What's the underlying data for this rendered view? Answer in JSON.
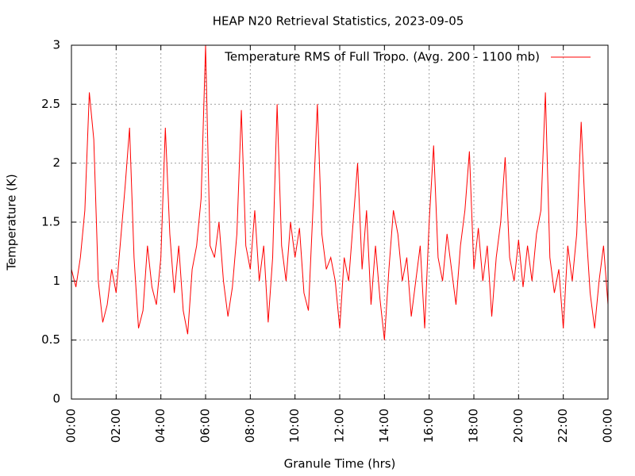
{
  "chart_data": {
    "type": "line",
    "title": "HEAP N20 Retrieval Statistics, 2023-09-05",
    "xlabel": "Granule Time (hrs)",
    "ylabel": "Temperature (K)",
    "x": [
      0,
      0.2,
      0.4,
      0.6,
      0.8,
      1,
      1.2,
      1.4,
      1.6,
      1.8,
      2,
      2.2,
      2.4,
      2.6,
      2.8,
      3,
      3.2,
      3.4,
      3.6,
      3.8,
      4,
      4.2,
      4.4,
      4.6,
      4.8,
      5,
      5.2,
      5.4,
      5.6,
      5.8,
      6,
      6.2,
      6.4,
      6.6,
      6.8,
      7,
      7.2,
      7.4,
      7.6,
      7.8,
      8,
      8.2,
      8.4,
      8.6,
      8.8,
      9,
      9.2,
      9.4,
      9.6,
      9.8,
      10,
      10.2,
      10.4,
      10.6,
      10.8,
      11,
      11.2,
      11.4,
      11.6,
      11.8,
      12,
      12.2,
      12.4,
      12.6,
      12.8,
      13,
      13.2,
      13.4,
      13.6,
      13.8,
      14,
      14.2,
      14.4,
      14.6,
      14.8,
      15,
      15.2,
      15.4,
      15.6,
      15.8,
      16,
      16.2,
      16.4,
      16.6,
      16.8,
      17,
      17.2,
      17.4,
      17.6,
      17.8,
      18,
      18.2,
      18.4,
      18.6,
      18.8,
      19,
      19.2,
      19.4,
      19.6,
      19.8,
      20,
      20.2,
      20.4,
      20.6,
      20.8,
      21,
      21.2,
      21.4,
      21.6,
      21.8,
      22,
      22.2,
      22.4,
      22.6,
      22.8,
      23,
      23.2,
      23.4,
      23.6,
      23.8,
      24
    ],
    "series": [
      {
        "name": "Temperature RMS of Full Tropo. (Avg. 200 - 1100 mb)",
        "color": "#ff0000",
        "values": [
          1.1,
          0.95,
          1.2,
          1.6,
          2.6,
          2.2,
          1.0,
          0.65,
          0.8,
          1.1,
          0.9,
          1.35,
          1.8,
          2.3,
          1.2,
          0.6,
          0.75,
          1.3,
          0.95,
          0.8,
          1.2,
          2.3,
          1.4,
          0.9,
          1.3,
          0.75,
          0.55,
          1.1,
          1.3,
          1.7,
          3.0,
          1.3,
          1.2,
          1.5,
          1.0,
          0.7,
          0.95,
          1.4,
          2.45,
          1.3,
          1.1,
          1.6,
          1.0,
          1.3,
          0.65,
          1.2,
          2.5,
          1.3,
          1.0,
          1.5,
          1.2,
          1.45,
          0.9,
          0.75,
          1.6,
          2.5,
          1.4,
          1.1,
          1.2,
          1.0,
          0.6,
          1.2,
          1.0,
          1.5,
          2.0,
          1.1,
          1.6,
          0.8,
          1.3,
          0.85,
          0.5,
          1.1,
          1.6,
          1.4,
          1.0,
          1.2,
          0.7,
          1.0,
          1.3,
          0.6,
          1.5,
          2.15,
          1.2,
          1.0,
          1.4,
          1.1,
          0.8,
          1.3,
          1.6,
          2.1,
          1.1,
          1.45,
          1.0,
          1.3,
          0.7,
          1.2,
          1.5,
          2.05,
          1.2,
          1.0,
          1.35,
          0.95,
          1.3,
          1.0,
          1.4,
          1.6,
          2.6,
          1.2,
          0.9,
          1.1,
          0.6,
          1.3,
          1.0,
          1.4,
          2.35,
          1.5,
          0.9,
          0.6,
          1.0,
          1.3,
          0.8
        ]
      }
    ],
    "xlim": [
      0,
      24
    ],
    "xticks": [
      {
        "value": 0,
        "label": "00:00"
      },
      {
        "value": 2,
        "label": "02:00"
      },
      {
        "value": 4,
        "label": "04:00"
      },
      {
        "value": 6,
        "label": "06:00"
      },
      {
        "value": 8,
        "label": "08:00"
      },
      {
        "value": 10,
        "label": "10:00"
      },
      {
        "value": 12,
        "label": "12:00"
      },
      {
        "value": 14,
        "label": "14:00"
      },
      {
        "value": 16,
        "label": "16:00"
      },
      {
        "value": 18,
        "label": "18:00"
      },
      {
        "value": 20,
        "label": "20:00"
      },
      {
        "value": 22,
        "label": "22:00"
      },
      {
        "value": 24,
        "label": "00:00"
      }
    ],
    "ylim": [
      0,
      3
    ],
    "yticks": [
      0,
      0.5,
      1,
      1.5,
      2,
      2.5,
      3
    ],
    "grid": true,
    "legend": "top-right"
  }
}
